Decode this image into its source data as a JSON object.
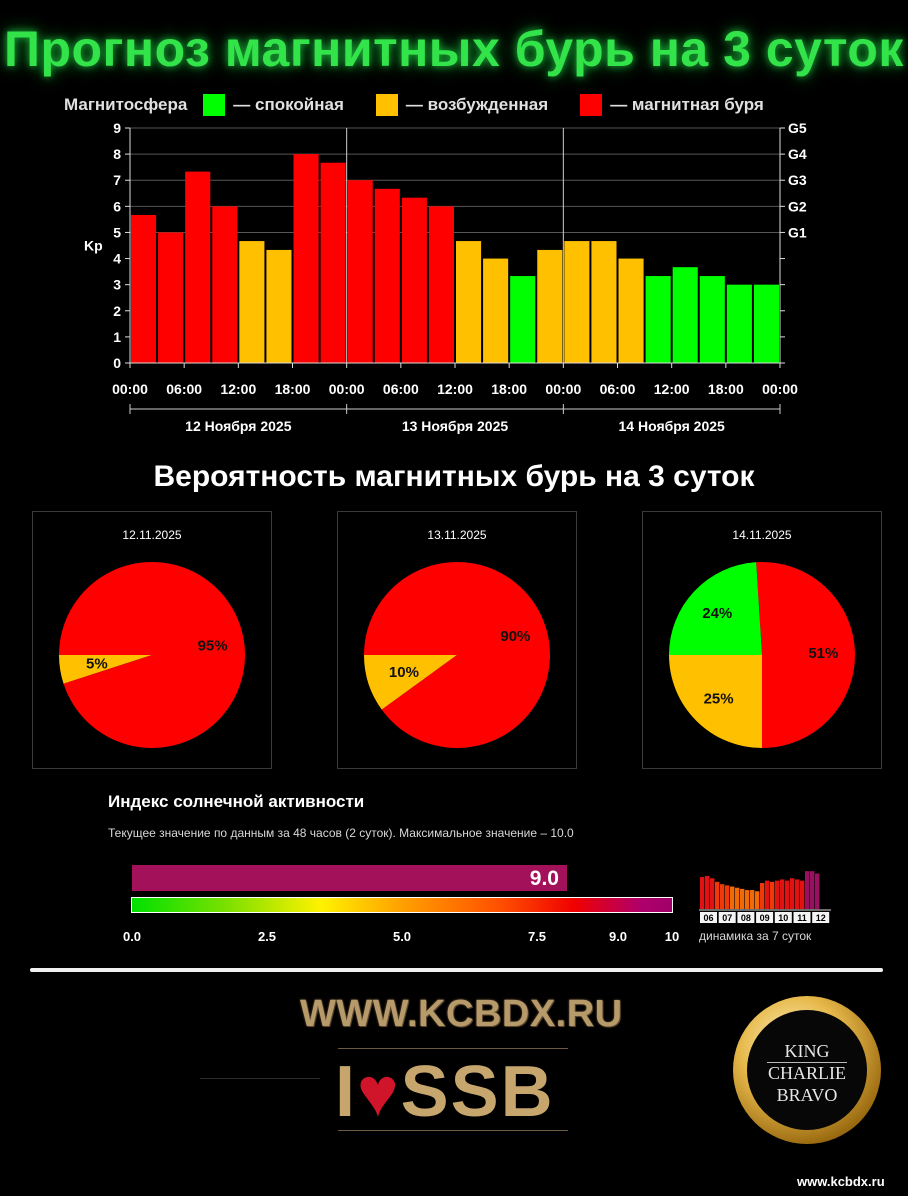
{
  "title": "Прогноз магнитных бурь на 3 суток",
  "legend": {
    "prefix": "Магнитосфера",
    "items": [
      {
        "label": "— спокойная",
        "color": "#00ff00"
      },
      {
        "label": "— возбужденная",
        "color": "#ffc000"
      },
      {
        "label": "— магнитная буря",
        "color": "#ff0000"
      }
    ]
  },
  "chart_data": [
    {
      "type": "bar",
      "ylabel": "Kp",
      "ylim": [
        0,
        9
      ],
      "yticks": [
        "0",
        "1",
        "2",
        "3",
        "4",
        "5",
        "6",
        "7",
        "8",
        "9"
      ],
      "right_ticks": [
        {
          "label": "G1",
          "value": 5
        },
        {
          "label": "G2",
          "value": 6
        },
        {
          "label": "G3",
          "value": 7
        },
        {
          "label": "G4",
          "value": 8
        },
        {
          "label": "G5",
          "value": 9
        }
      ],
      "time_labels": [
        "00:00",
        "06:00",
        "12:00",
        "18:00",
        "00:00",
        "06:00",
        "12:00",
        "18:00",
        "00:00",
        "06:00",
        "12:00",
        "18:00",
        "00:00"
      ],
      "days": [
        "12 Ноября 2025",
        "13 Ноября 2025",
        "14 Ноября 2025"
      ],
      "values": [
        5.67,
        5,
        7.33,
        6,
        4.67,
        4.33,
        8,
        7.67,
        7,
        6.67,
        6.33,
        6,
        4.67,
        4,
        3.33,
        4.33,
        4.67,
        4.67,
        4,
        3.33,
        3.67,
        3.33,
        3,
        3
      ],
      "colors": {
        "quiet": "#00ff00",
        "active": "#ffc000",
        "storm": "#ff0000"
      },
      "grid": true
    },
    {
      "type": "pie",
      "date": "12.11.2025",
      "slices": [
        {
          "label": "5%",
          "value": 5,
          "color": "#ffc000"
        },
        {
          "label": "95%",
          "value": 95,
          "color": "#ff0000"
        }
      ]
    },
    {
      "type": "pie",
      "date": "13.11.2025",
      "slices": [
        {
          "label": "10%",
          "value": 10,
          "color": "#ffc000"
        },
        {
          "label": "90%",
          "value": 90,
          "color": "#ff0000"
        }
      ]
    },
    {
      "type": "pie",
      "date": "14.11.2025",
      "slices": [
        {
          "label": "25%",
          "value": 25,
          "color": "#ffc000"
        },
        {
          "label": "51%",
          "value": 51,
          "color": "#ff0000"
        },
        {
          "label": "24%",
          "value": 24,
          "color": "#00ff00"
        }
      ]
    }
  ],
  "probability_title": "Вероятность магнитных бурь на 3 суток",
  "solar": {
    "title": "Индекс солнечной активности",
    "subtitle": "Текущее значение по данным за 48 часов (2 суток). Максимальное значение – 10.0",
    "value": 9.0,
    "value_label": "9.0",
    "max": 10,
    "scale_labels": [
      "0.0",
      "2.5",
      "5.0",
      "7.5",
      "9.0",
      "10"
    ],
    "scale_values": [
      0,
      2.5,
      5.0,
      7.5,
      9.0,
      10
    ],
    "dynamics_label": "динамика за 7 суток",
    "dynamics_days": [
      "06",
      "07",
      "08",
      "09",
      "10",
      "11",
      "12"
    ],
    "dynamics_values": [
      8.7,
      8.8,
      8.6,
      8.3,
      8.1,
      8.0,
      7.9,
      7.8,
      7.7,
      7.6,
      7.6,
      7.5,
      8.2,
      8.4,
      8.3,
      8.4,
      8.5,
      8.4,
      8.6,
      8.5,
      8.4,
      9.2,
      9.2,
      9.0
    ]
  },
  "footer": {
    "site": "WWW.KCBDX.RU",
    "ssb_prefix": "I",
    "ssb_heart": "♥",
    "ssb_text": "SSB",
    "badge_lines": [
      "KING",
      "CHARLIE",
      "BRAVO"
    ],
    "small_url": "www.kcbdx.ru"
  }
}
